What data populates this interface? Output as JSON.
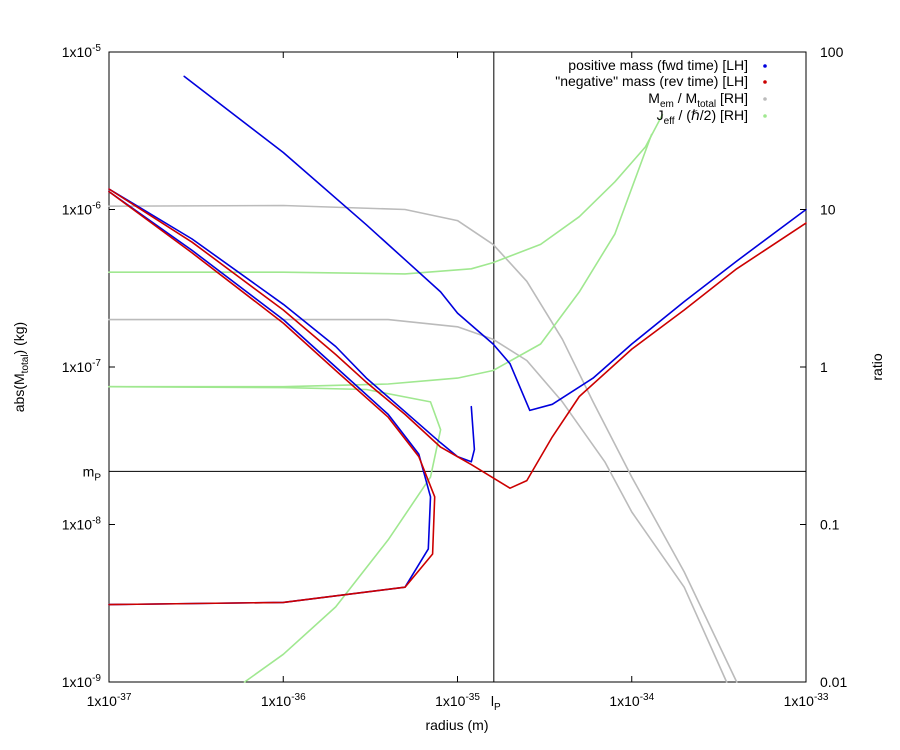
{
  "chart_data": {
    "type": "line",
    "x_scale": "log",
    "y_scale": "log",
    "y2_scale": "log",
    "xlim": [
      1e-37,
      1e-33
    ],
    "ylim": [
      1e-09,
      1e-05
    ],
    "y2lim": [
      0.01,
      100
    ],
    "xlabel": "radius (m)",
    "ylabel": {
      "base": "abs(M",
      "sub": "total",
      "tail": ") (kg)"
    },
    "y2label": "ratio",
    "grid": false,
    "legend_position": "top-right",
    "x_ticks": [
      {
        "value": 1e-37,
        "base": "1x10",
        "exp": "-37"
      },
      {
        "value": 1e-36,
        "base": "1x10",
        "exp": "-36"
      },
      {
        "value": 1e-35,
        "base": "1x10",
        "exp": "-35"
      },
      {
        "value": 1e-34,
        "base": "1x10",
        "exp": "-34"
      },
      {
        "value": 1e-33,
        "base": "1x10",
        "exp": "-33"
      }
    ],
    "y_ticks": [
      {
        "value": 1e-09,
        "base": "1x10",
        "exp": "-9"
      },
      {
        "value": 1e-08,
        "base": "1x10",
        "exp": "-8"
      },
      {
        "value": 1e-07,
        "base": "1x10",
        "exp": "-7"
      },
      {
        "value": 1e-06,
        "base": "1x10",
        "exp": "-6"
      },
      {
        "value": 1e-05,
        "base": "1x10",
        "exp": "-5"
      }
    ],
    "y2_ticks": [
      {
        "value": 0.01,
        "label": "0.01"
      },
      {
        "value": 0.1,
        "label": "0.1"
      },
      {
        "value": 1,
        "label": "1"
      },
      {
        "value": 10,
        "label": "10"
      },
      {
        "value": 100,
        "label": "100"
      }
    ],
    "reference_lines": [
      {
        "axis": "x",
        "value": 1.616e-35,
        "label": "l",
        "label_sub": "P"
      },
      {
        "axis": "y",
        "value": 2.176e-08,
        "label": "m",
        "label_sub": "P"
      }
    ],
    "legend": [
      {
        "text": "positive mass (fwd time) [LH]",
        "color": "#0000dd"
      },
      {
        "text": "\"negative\" mass (rev time) [LH]",
        "color": "#cc0000"
      },
      {
        "text_parts": [
          "M",
          "em",
          " / M",
          "total",
          " [RH]"
        ],
        "color": "#bbbbbb"
      },
      {
        "text_parts": [
          "J",
          "eff",
          " / (ℏ/2) [RH]"
        ],
        "color": "#a0e890"
      }
    ],
    "series": [
      {
        "name": "positive mass (fwd time) [LH]",
        "axis": "y",
        "color": "#0000dd",
        "points": [
          [
            2.7e-37,
            7e-06
          ],
          [
            1e-36,
            2.3e-06
          ],
          [
            3e-36,
            8e-07
          ],
          [
            5e-36,
            4.8e-07
          ],
          [
            8e-36,
            3e-07
          ],
          [
            1e-35,
            2.2e-07
          ],
          [
            1.6e-35,
            1.4e-07
          ],
          [
            2e-35,
            1.05e-07
          ],
          [
            2.6e-35,
            5.3e-08
          ],
          [
            3.5e-35,
            5.8e-08
          ],
          [
            6e-35,
            8.5e-08
          ],
          [
            1e-34,
            1.4e-07
          ],
          [
            2e-34,
            2.6e-07
          ],
          [
            4e-34,
            4.7e-07
          ],
          [
            1e-33,
            1e-06
          ]
        ]
      },
      {
        "name": "positive mass (fwd time) [LH]",
        "axis": "y",
        "color": "#0000dd",
        "points": [
          [
            1e-37,
            1.35e-06
          ],
          [
            3e-37,
            6.5e-07
          ],
          [
            1e-36,
            2.5e-07
          ],
          [
            2e-36,
            1.35e-07
          ],
          [
            3e-36,
            8.5e-08
          ],
          [
            5e-36,
            5.2e-08
          ],
          [
            8e-36,
            3.3e-08
          ],
          [
            1e-35,
            2.7e-08
          ],
          [
            1.2e-35,
            2.5e-08
          ],
          [
            1.25e-35,
            3e-08
          ],
          [
            1.2e-35,
            5.6e-08
          ]
        ]
      },
      {
        "name": "positive mass (fwd time) [LH]",
        "axis": "y",
        "color": "#0000dd",
        "points": [
          [
            1e-37,
            1.3e-06
          ],
          [
            3e-37,
            5.5e-07
          ],
          [
            1e-36,
            2e-07
          ],
          [
            2e-36,
            1e-07
          ],
          [
            4e-36,
            5e-08
          ],
          [
            6e-36,
            2.8e-08
          ],
          [
            7e-36,
            1.5e-08
          ],
          [
            6.8e-36,
            7e-09
          ],
          [
            5e-36,
            4e-09
          ],
          [
            1e-36,
            3.2e-09
          ],
          [
            1e-37,
            3.1e-09
          ]
        ]
      },
      {
        "name": "\"negative\" mass (rev time) [LH]",
        "axis": "y",
        "color": "#cc0000",
        "points": [
          [
            1e-37,
            1.35e-06
          ],
          [
            3e-37,
            6.2e-07
          ],
          [
            1e-36,
            2.3e-07
          ],
          [
            2e-36,
            1.2e-07
          ],
          [
            3e-36,
            8e-08
          ],
          [
            5e-36,
            5e-08
          ],
          [
            8e-36,
            3.1e-08
          ],
          [
            1.2e-35,
            2.4e-08
          ],
          [
            2e-35,
            1.7e-08
          ],
          [
            2.5e-35,
            1.9e-08
          ],
          [
            3.5e-35,
            3.6e-08
          ],
          [
            5e-35,
            6.5e-08
          ],
          [
            1e-34,
            1.3e-07
          ],
          [
            2e-34,
            2.3e-07
          ],
          [
            4e-34,
            4.2e-07
          ],
          [
            1e-33,
            8.2e-07
          ]
        ]
      },
      {
        "name": "\"negative\" mass (rev time) [LH]",
        "axis": "y",
        "color": "#cc0000",
        "points": [
          [
            1e-37,
            1.3e-06
          ],
          [
            3e-37,
            5.3e-07
          ],
          [
            1e-36,
            1.9e-07
          ],
          [
            2e-36,
            9.5e-08
          ],
          [
            4e-36,
            4.8e-08
          ],
          [
            6e-36,
            2.7e-08
          ],
          [
            7.4e-36,
            1.5e-08
          ],
          [
            7.2e-36,
            6.5e-09
          ],
          [
            5e-36,
            4e-09
          ],
          [
            1e-36,
            3.2e-09
          ],
          [
            1e-37,
            3.1e-09
          ]
        ]
      },
      {
        "name": "M_em / M_total [RH]",
        "axis": "y2",
        "color": "#bbbbbb",
        "points": [
          [
            1e-37,
            10.5
          ],
          [
            1e-36,
            10.6
          ],
          [
            5e-36,
            10
          ],
          [
            1e-35,
            8.5
          ],
          [
            1.6e-35,
            6
          ],
          [
            2.5e-35,
            3.5
          ],
          [
            4e-35,
            1.5
          ],
          [
            6e-35,
            0.6
          ],
          [
            1e-34,
            0.2
          ],
          [
            2e-34,
            0.05
          ],
          [
            4e-34,
            0.01
          ]
        ]
      },
      {
        "name": "M_em / M_total [RH]",
        "axis": "y2",
        "color": "#bbbbbb",
        "points": [
          [
            1e-37,
            2
          ],
          [
            1e-36,
            2
          ],
          [
            4e-36,
            2
          ],
          [
            1e-35,
            1.8
          ],
          [
            1.6e-35,
            1.5
          ],
          [
            2.5e-35,
            1.1
          ],
          [
            4e-35,
            0.6
          ],
          [
            7e-35,
            0.25
          ],
          [
            1e-34,
            0.12
          ],
          [
            2e-34,
            0.04
          ],
          [
            3.5e-34,
            0.01
          ]
        ]
      },
      {
        "name": "J_eff / (ℏ/2) [RH]",
        "axis": "y2",
        "color": "#a0e890",
        "points": [
          [
            1e-37,
            4
          ],
          [
            1e-36,
            4
          ],
          [
            5e-36,
            3.9
          ],
          [
            1.2e-35,
            4.2
          ],
          [
            1.6e-35,
            4.6
          ],
          [
            3e-35,
            6
          ],
          [
            5e-35,
            9
          ],
          [
            8e-35,
            15
          ],
          [
            1.2e-34,
            25
          ],
          [
            1.5e-34,
            40
          ]
        ]
      },
      {
        "name": "J_eff / (ℏ/2) [RH]",
        "axis": "y2",
        "color": "#a0e890",
        "points": [
          [
            1e-37,
            0.75
          ],
          [
            1e-36,
            0.75
          ],
          [
            4e-36,
            0.78
          ],
          [
            1e-35,
            0.85
          ],
          [
            1.6e-35,
            0.95
          ],
          [
            3e-35,
            1.4
          ],
          [
            5e-35,
            3
          ],
          [
            8e-35,
            7
          ],
          [
            1.3e-34,
            30
          ]
        ]
      },
      {
        "name": "J_eff / (ℏ/2) [RH]",
        "axis": "y2",
        "color": "#a0e890",
        "points": [
          [
            6e-37,
            0.01
          ],
          [
            1e-36,
            0.015
          ],
          [
            2e-36,
            0.03
          ],
          [
            4e-36,
            0.08
          ],
          [
            7e-36,
            0.2
          ],
          [
            8e-36,
            0.4
          ],
          [
            7e-36,
            0.6
          ],
          [
            3e-36,
            0.72
          ],
          [
            1e-36,
            0.74
          ],
          [
            1e-37,
            0.75
          ]
        ]
      }
    ]
  }
}
